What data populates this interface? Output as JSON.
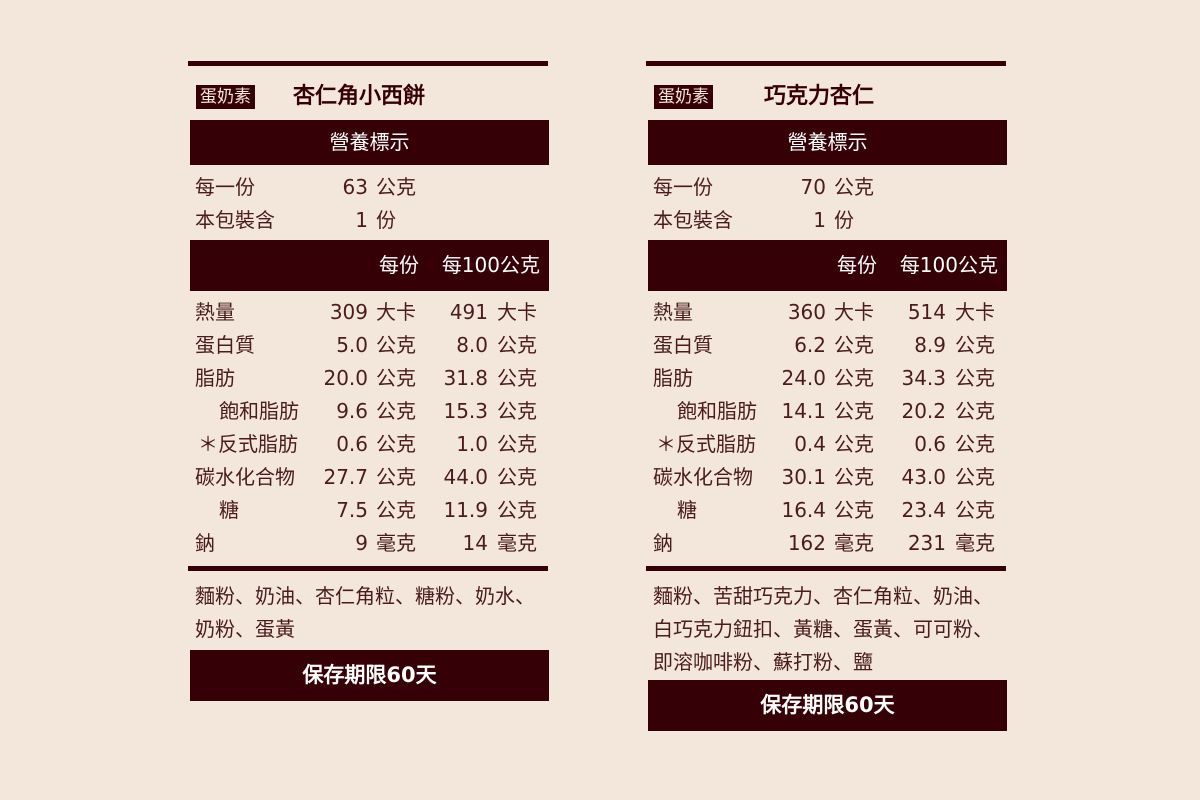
{
  "colors": {
    "background": "#f3e6da",
    "dark": "#350006",
    "text": "#4a1c1c"
  },
  "labels": [
    {
      "tag": "蛋奶素",
      "name": "杏仁角小西餅",
      "header": "營養標示",
      "serving_label": "每一份",
      "serving_value": "63",
      "serving_unit": "公克",
      "pack_label": "本包裝含",
      "pack_value": "1",
      "pack_unit": "份",
      "col_per_serving": "每份",
      "col_per_100g": "每100公克",
      "nutrients": [
        {
          "name": "熱量",
          "v1": "309",
          "u1": "大卡",
          "v2": "491",
          "u2": "大卡"
        },
        {
          "name": "蛋白質",
          "v1": "5.0",
          "u1": "公克",
          "v2": "8.0",
          "u2": "公克"
        },
        {
          "name": "脂肪",
          "v1": "20.0",
          "u1": "公克",
          "v2": "31.8",
          "u2": "公克"
        },
        {
          "name": "飽和脂肪",
          "v1": "9.6",
          "u1": "公克",
          "v2": "15.3",
          "u2": "公克"
        },
        {
          "name": "＊反式脂肪",
          "v1": "0.6",
          "u1": "公克",
          "v2": "1.0",
          "u2": "公克"
        },
        {
          "name": "碳水化合物",
          "v1": "27.7",
          "u1": "公克",
          "v2": "44.0",
          "u2": "公克"
        },
        {
          "name": "糖",
          "v1": "7.5",
          "u1": "公克",
          "v2": "11.9",
          "u2": "公克"
        },
        {
          "name": "鈉",
          "v1": "9",
          "u1": "毫克",
          "v2": "14",
          "u2": "毫克"
        }
      ],
      "ingredients": "麵粉、奶油、杏仁角粒、糖粉、奶水、奶粉、蛋黃",
      "shelf_life": "保存期限60天"
    },
    {
      "tag": "蛋奶素",
      "name": "巧克力杏仁",
      "header": "營養標示",
      "serving_label": "每一份",
      "serving_value": "70",
      "serving_unit": "公克",
      "pack_label": "本包裝含",
      "pack_value": "1",
      "pack_unit": "份",
      "col_per_serving": "每份",
      "col_per_100g": "每100公克",
      "nutrients": [
        {
          "name": "熱量",
          "v1": "360",
          "u1": "大卡",
          "v2": "514",
          "u2": "大卡"
        },
        {
          "name": "蛋白質",
          "v1": "6.2",
          "u1": "公克",
          "v2": "8.9",
          "u2": "公克"
        },
        {
          "name": "脂肪",
          "v1": "24.0",
          "u1": "公克",
          "v2": "34.3",
          "u2": "公克"
        },
        {
          "name": "飽和脂肪",
          "v1": "14.1",
          "u1": "公克",
          "v2": "20.2",
          "u2": "公克"
        },
        {
          "name": "＊反式脂肪",
          "v1": "0.4",
          "u1": "公克",
          "v2": "0.6",
          "u2": "公克"
        },
        {
          "name": "碳水化合物",
          "v1": "30.1",
          "u1": "公克",
          "v2": "43.0",
          "u2": "公克"
        },
        {
          "name": "糖",
          "v1": "16.4",
          "u1": "公克",
          "v2": "23.4",
          "u2": "公克"
        },
        {
          "name": "鈉",
          "v1": "162",
          "u1": "毫克",
          "v2": "231",
          "u2": "毫克"
        }
      ],
      "ingredients": "麵粉、苦甜巧克力、杏仁角粒、奶油、白巧克力鈕扣、黃糖、蛋黃、可可粉、即溶咖啡粉、蘇打粉、鹽",
      "shelf_life": "保存期限60天"
    }
  ]
}
